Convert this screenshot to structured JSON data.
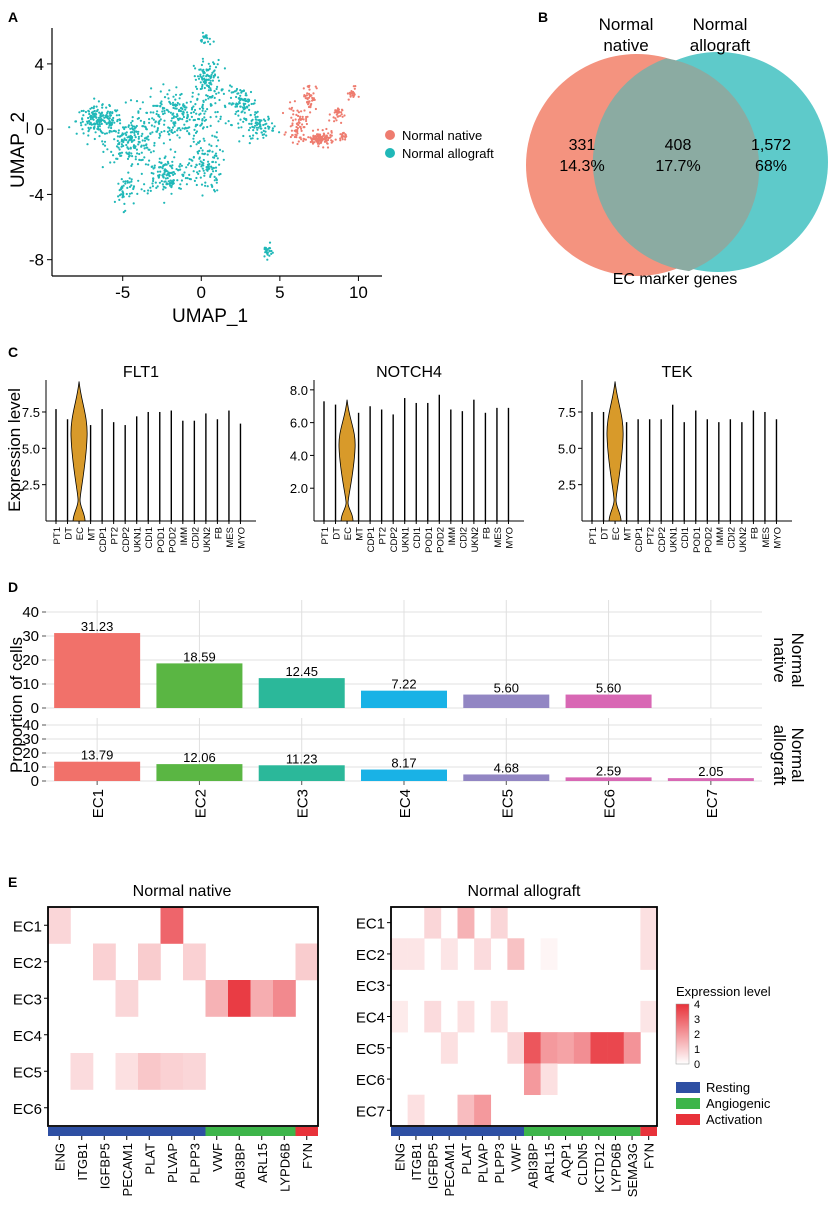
{
  "panels": {
    "a": "A",
    "b": "B",
    "c": "C",
    "d": "D",
    "e": "E"
  },
  "umap": {
    "xlabel": "UMAP_1",
    "ylabel": "UMAP_2",
    "xticks": [
      "-5",
      "0",
      "5",
      "10"
    ],
    "xtick_values": [
      -5,
      0,
      5,
      10
    ],
    "yticks": [
      "4",
      "0",
      "-4",
      "-8"
    ],
    "ytick_values": [
      4,
      0,
      -4,
      -8
    ],
    "xlim": [
      -9.5,
      11.5
    ],
    "ylim": [
      -9,
      6.2
    ],
    "legend": [
      {
        "label": "Normal native",
        "color": "#EE7C6F"
      },
      {
        "label": "Normal allograft",
        "color": "#20B8B8"
      }
    ]
  },
  "venn": {
    "left_title_1": "Normal",
    "left_title_2": "native",
    "right_title_1": "Normal",
    "right_title_2": "allograft",
    "left_count": "331",
    "left_pct": "14.3%",
    "mid_count": "408",
    "mid_pct": "17.7%",
    "right_count": "1,572",
    "right_pct": "68%",
    "caption": "EC marker genes",
    "left_color": "#F4937F",
    "right_color": "#52C6C6",
    "overlap_color": "#8BABA2"
  },
  "violin": {
    "ylabel": "Expression level",
    "categories": [
      "PT1",
      "DT",
      "EC",
      "MT",
      "CDP1",
      "PT2",
      "CDP2",
      "UKN1",
      "CDI1",
      "POD1",
      "POD2",
      "IMM",
      "CDI2",
      "UKN2",
      "FB",
      "MES",
      "MYO"
    ],
    "ec_color": "#D89A2A",
    "plots": [
      {
        "title": "FLT1",
        "yticks": [
          "2.5",
          "5.0",
          "7.5"
        ],
        "ytick_values": [
          2.5,
          5.0,
          7.5
        ],
        "ymax": 9.7,
        "heights": [
          7.7,
          7.0,
          9.6,
          6.6,
          7.7,
          6.8,
          6.6,
          7.2,
          7.5,
          7.5,
          7.6,
          6.9,
          6.9,
          7.4,
          7.0,
          7.6,
          6.7
        ]
      },
      {
        "title": "NOTCH4",
        "yticks": [
          "2.0",
          "4.0",
          "6.0",
          "8.0"
        ],
        "ytick_values": [
          2.0,
          4.0,
          6.0,
          8.0
        ],
        "ymax": 8.6,
        "heights": [
          7.3,
          7.1,
          7.4,
          6.6,
          7.0,
          6.8,
          6.5,
          7.5,
          7.2,
          7.2,
          7.7,
          6.8,
          6.7,
          7.4,
          6.6,
          6.9,
          6.9
        ]
      },
      {
        "title": "TEK",
        "yticks": [
          "2.5",
          "5.0",
          "7.5"
        ],
        "ytick_values": [
          2.5,
          5.0,
          7.5
        ],
        "ymax": 9.7,
        "heights": [
          7.5,
          7.5,
          9.6,
          6.8,
          7.0,
          7.0,
          7.0,
          8.0,
          6.8,
          7.6,
          7.0,
          6.8,
          7.0,
          6.8,
          7.6,
          7.5,
          7.0
        ]
      }
    ]
  },
  "chart_data": [
    {
      "type": "bar",
      "ylabel": "Proportion of cells",
      "categories": [
        "EC1",
        "EC2",
        "EC3",
        "EC4",
        "EC5",
        "EC6",
        "EC7"
      ],
      "colors": [
        "#F1716A",
        "#5AB643",
        "#2BB89A",
        "#19B2E6",
        "#9286C3",
        "#D868B4",
        "#D868B4"
      ],
      "ylim": [
        0,
        45
      ],
      "yticks": [
        "0",
        "10",
        "20",
        "30",
        "40"
      ],
      "series": [
        {
          "name": "Normal native",
          "name_1": "Normal",
          "name_2": "native",
          "values": [
            31.23,
            18.59,
            12.45,
            7.22,
            5.6,
            5.6,
            null
          ],
          "labels": [
            "31.23",
            "18.59",
            "12.45",
            "7.22",
            "5.60",
            "5.60",
            ""
          ]
        },
        {
          "name": "Normal allograft",
          "name_1": "Normal",
          "name_2": "allograft",
          "values": [
            13.79,
            12.06,
            11.23,
            8.17,
            4.68,
            2.59,
            2.05
          ],
          "labels": [
            "13.79",
            "12.06",
            "11.23",
            "8.17",
            "4.68",
            "2.59",
            "2.05"
          ]
        }
      ]
    },
    {
      "type": "heatmap",
      "title": "Normal native",
      "rows": [
        "EC1",
        "EC2",
        "EC3",
        "EC4",
        "EC5",
        "EC6"
      ],
      "cols": [
        "ENG",
        "ITGB1",
        "IGFBP5",
        "PECAM1",
        "PLAT",
        "PLVAP",
        "PLPP3",
        "VWF",
        "ABI3BP",
        "ARL15",
        "LYPD6B",
        "FYN"
      ],
      "group_sizes": [
        7,
        4,
        1
      ],
      "values": [
        [
          0.8,
          0,
          0,
          0,
          0,
          3.0,
          0,
          0,
          0,
          0,
          0,
          0
        ],
        [
          0,
          0,
          0.9,
          0,
          1.0,
          0,
          0.9,
          0,
          0,
          0,
          0,
          1.0
        ],
        [
          0,
          0,
          0,
          0.8,
          0,
          0,
          0,
          1.5,
          3.8,
          1.6,
          2.3,
          0
        ],
        [
          0,
          0,
          0,
          0,
          0,
          0,
          0,
          0,
          0,
          0,
          0,
          0
        ],
        [
          0,
          0.7,
          0,
          0.6,
          1.1,
          0.9,
          0.8,
          0,
          0,
          0,
          0,
          0
        ],
        [
          0,
          0,
          0,
          0,
          0,
          0,
          0,
          0,
          0,
          0,
          0,
          0
        ]
      ]
    },
    {
      "type": "heatmap",
      "title": "Normal allograft",
      "rows": [
        "EC1",
        "EC2",
        "EC3",
        "EC4",
        "EC5",
        "EC6",
        "EC7"
      ],
      "cols": [
        "ENG",
        "ITGB1",
        "IGFBP5",
        "PECAM1",
        "PLAT",
        "PLVAP",
        "PLPP3",
        "VWF",
        "ABI3BP",
        "ARL15",
        "AQP1",
        "CLDN5",
        "KCTD12",
        "LYPD6B",
        "SEMA3G",
        "FYN"
      ],
      "group_sizes": [
        8,
        7,
        1
      ],
      "values": [
        [
          0,
          0,
          0.8,
          0,
          1.5,
          0,
          0.8,
          0,
          0,
          0,
          0,
          0,
          0,
          0,
          0,
          0.6
        ],
        [
          0.5,
          0.5,
          0,
          0.5,
          0,
          0.7,
          0,
          1.2,
          0,
          0.2,
          0,
          0,
          0,
          0,
          0,
          0.6
        ],
        [
          0,
          0,
          0,
          0,
          0,
          0,
          0,
          0,
          0,
          0,
          0,
          0,
          0,
          0,
          0,
          0
        ],
        [
          0.4,
          0,
          0.7,
          0,
          0.6,
          0,
          0.6,
          0,
          0,
          0,
          0,
          0,
          0,
          0,
          0,
          0.5
        ],
        [
          0,
          0,
          0,
          0.6,
          0,
          0,
          0,
          0.8,
          3.3,
          2.0,
          1.8,
          2.2,
          3.6,
          3.6,
          2.1,
          0
        ],
        [
          0,
          0,
          0,
          0,
          0,
          0,
          0,
          0,
          2.0,
          0.6,
          0,
          0,
          0,
          0,
          0,
          0
        ],
        [
          0,
          0.6,
          0,
          0,
          1.3,
          2.0,
          0,
          0,
          0,
          0,
          0,
          0,
          0,
          0,
          0,
          0
        ]
      ]
    }
  ],
  "heatmap_legend": {
    "title": "Expression level",
    "ticks": [
      "4",
      "3",
      "2",
      "1",
      "0"
    ],
    "tick_values": [
      4,
      3,
      2,
      1,
      0
    ],
    "max": 4,
    "groups": [
      {
        "label": "Resting",
        "color": "#2E4FA3"
      },
      {
        "label": "Angiogenic",
        "color": "#3DB54A"
      },
      {
        "label": "Activation",
        "color": "#E8323A"
      }
    ]
  }
}
